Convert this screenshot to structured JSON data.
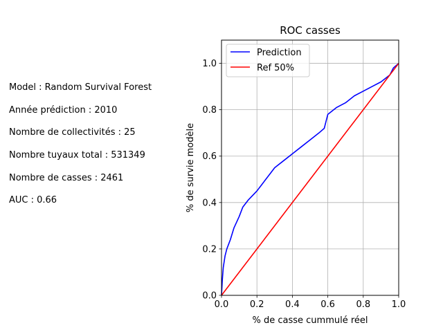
{
  "info": [
    "Model : Random Survival Forest",
    "Année prédiction : 2010",
    "Nombre de collectivités : 25",
    "Nombre tuyaux total : 531349",
    "Nombre de casses : 2461",
    "AUC : 0.66"
  ],
  "chart_data": {
    "type": "line",
    "title": "ROC casses",
    "xlabel": "% de casse cummulé réel",
    "ylabel": "% de survie modèle",
    "xlim": [
      0.0,
      1.0
    ],
    "ylim": [
      0.0,
      1.1
    ],
    "xticks": [
      "0.0",
      "0.2",
      "0.4",
      "0.6",
      "0.8",
      "1.0"
    ],
    "yticks": [
      "0.0",
      "0.2",
      "0.4",
      "0.6",
      "0.8",
      "1.0"
    ],
    "grid": true,
    "legend_position": "top-left",
    "series": [
      {
        "name": "Prediction",
        "color": "#0000ff",
        "x": [
          0.0,
          0.005,
          0.01,
          0.02,
          0.03,
          0.04,
          0.05,
          0.07,
          0.1,
          0.12,
          0.15,
          0.2,
          0.22,
          0.25,
          0.28,
          0.3,
          0.35,
          0.4,
          0.45,
          0.5,
          0.55,
          0.58,
          0.6,
          0.65,
          0.7,
          0.75,
          0.8,
          0.85,
          0.9,
          0.95,
          0.97,
          1.0
        ],
        "y": [
          0.0,
          0.07,
          0.12,
          0.17,
          0.2,
          0.22,
          0.24,
          0.29,
          0.34,
          0.38,
          0.41,
          0.45,
          0.47,
          0.5,
          0.53,
          0.55,
          0.58,
          0.61,
          0.64,
          0.67,
          0.7,
          0.72,
          0.78,
          0.81,
          0.83,
          0.86,
          0.88,
          0.9,
          0.92,
          0.95,
          0.98,
          1.0
        ]
      },
      {
        "name": "Ref 50%",
        "color": "#ff0000",
        "x": [
          0.0,
          1.0
        ],
        "y": [
          0.0,
          1.0
        ]
      }
    ]
  }
}
